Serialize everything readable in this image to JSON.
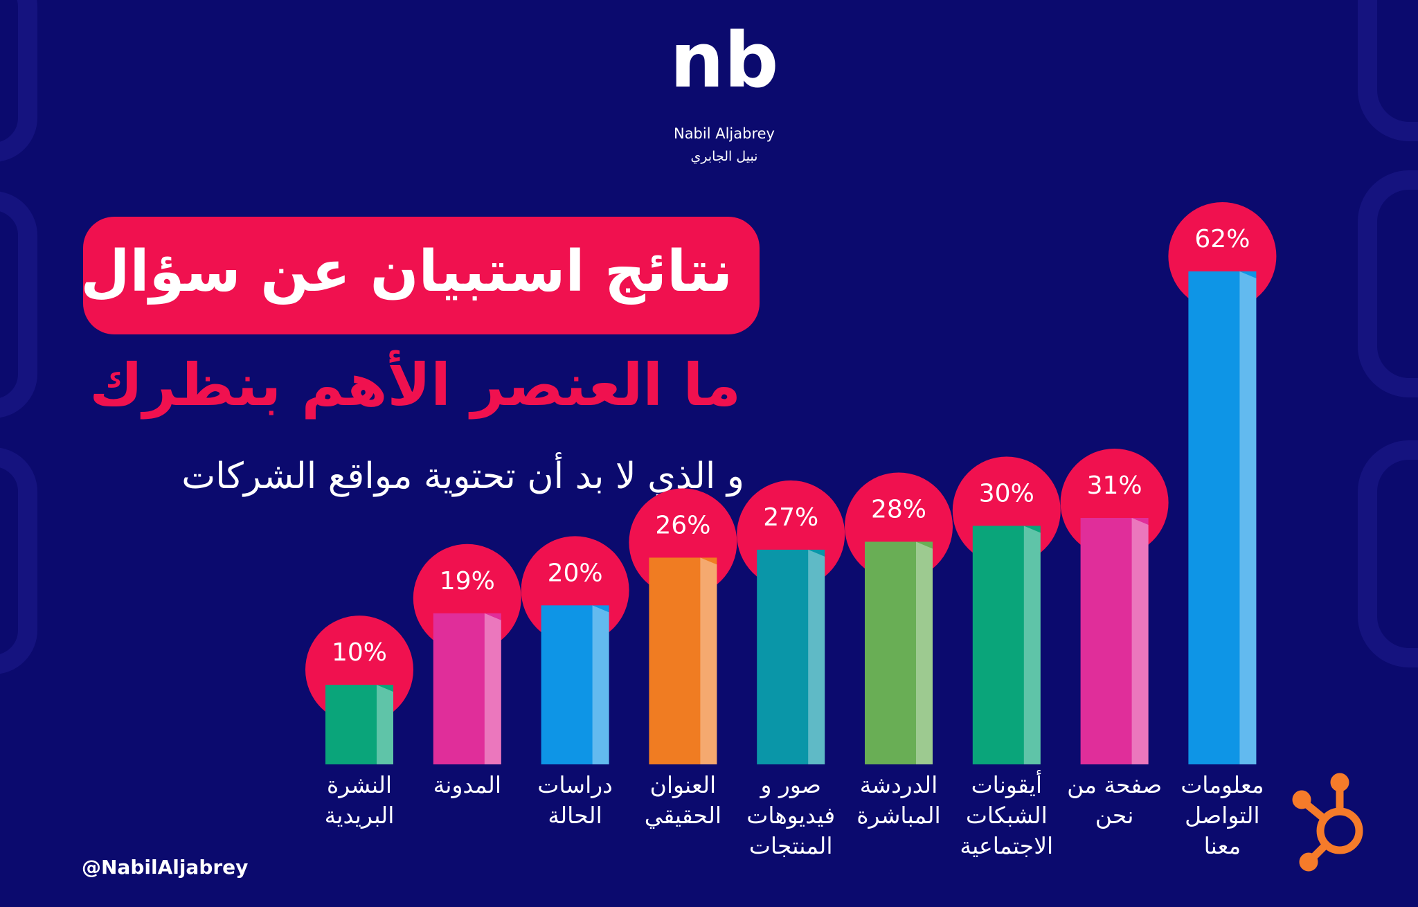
{
  "logo": "nb",
  "brand_en": "Nabil Aljabrey",
  "brand_ar": "نبيل الجابري",
  "handle": "@NabilAljabrey",
  "chart_data": {
    "type": "bar",
    "title": "نتائج استبيان عن سؤال",
    "subtitle": "ما العنصر الأهم بنظرك",
    "caption": "و الذي لا بد أن تحتوية مواقع الشركات",
    "categories": [
      "النشرة البريدية",
      "المدونة",
      "دراسات الحالة",
      "العنوان الحقيقي",
      "صور و فيديوهات المنتجات",
      "الدردشة المباشرة",
      "أيقونات الشبكات الاجتماعية",
      "صفحة من نحن",
      "معلومات التواصل معنا"
    ],
    "values": [
      10,
      19,
      20,
      26,
      27,
      28,
      30,
      31,
      62
    ],
    "value_labels": [
      "10%",
      "19%",
      "20%",
      "26%",
      "27%",
      "28%",
      "30%",
      "31%",
      "62%"
    ],
    "colors": [
      "#0aa57a",
      "#e02e9a",
      "#0e95e6",
      "#f07c22",
      "#0a96a8",
      "#69ae55",
      "#0aa57a",
      "#e02e9a",
      "#0e95e6"
    ],
    "label_bubble_color": "#f0114f"
  }
}
